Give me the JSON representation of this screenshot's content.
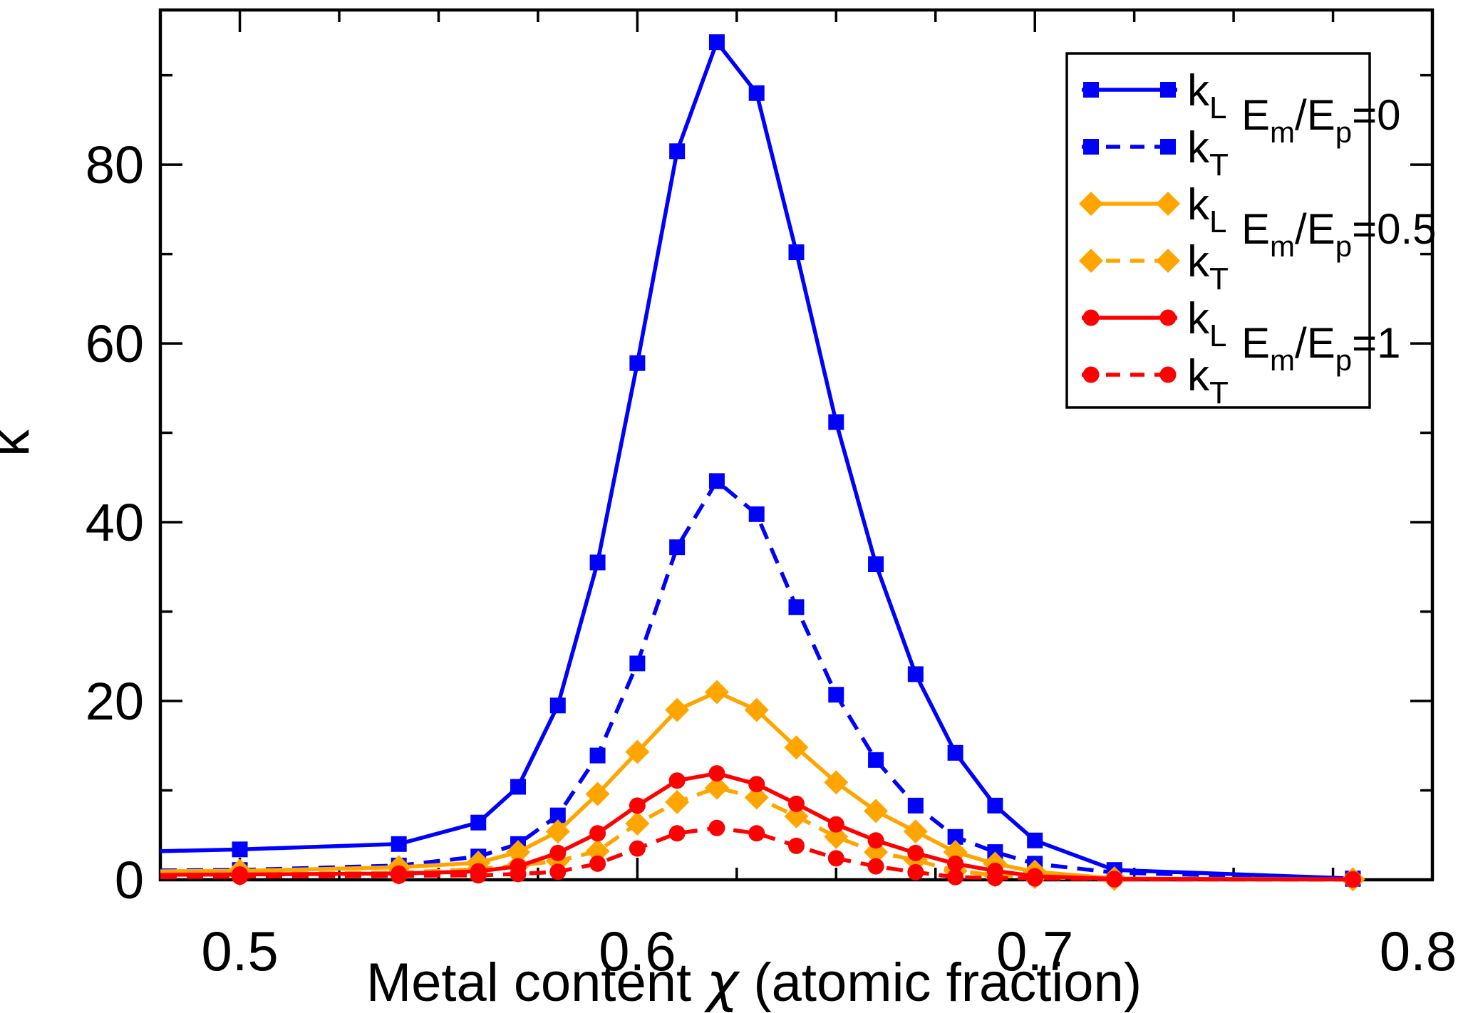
{
  "background": "#ffffff",
  "chart_data": {
    "type": "line",
    "title": "",
    "xlabel": "Metal content χ (atomic fraction)",
    "ylabel": "k",
    "xlim": [
      0.48,
      0.8
    ],
    "ylim": [
      0,
      97.3
    ],
    "grid": false,
    "frame": "full-box",
    "x_major_ticks": [
      0.5,
      0.6,
      0.7,
      0.8
    ],
    "x_tick_labels": [
      "0.5",
      "0.6",
      "0.7",
      "0.8"
    ],
    "x_minor_tick_step": 0.025,
    "y_major_ticks": [
      20,
      40,
      60,
      80
    ],
    "y_minor_ticks": [
      10,
      30,
      50,
      70,
      90
    ],
    "y_tick_labels": [
      "0",
      "20",
      "40",
      "60",
      "80"
    ],
    "y_tick_values": [
      0,
      20,
      40,
      60,
      80
    ],
    "axis_color": "#000000",
    "x": [
      0.48,
      0.5,
      0.54,
      0.56,
      0.57,
      0.58,
      0.59,
      0.6,
      0.61,
      0.62,
      0.63,
      0.64,
      0.65,
      0.66,
      0.67,
      0.68,
      0.69,
      0.7,
      0.72,
      0.78
    ],
    "first_point_at_frame_edge_no_marker": true,
    "series": [
      {
        "name": "k_L",
        "group": "E_m/E_p=0",
        "color": "#0000ff",
        "dashed": false,
        "marker": "square",
        "values": [
          3.2,
          3.4,
          4.0,
          6.4,
          10.4,
          19.5,
          35.5,
          57.8,
          81.5,
          93.7,
          88.0,
          70.2,
          51.2,
          35.3,
          23.0,
          14.2,
          8.3,
          4.4,
          1.1,
          0.15
        ]
      },
      {
        "name": "k_T",
        "group": "E_m/E_p=0",
        "color": "#0000ff",
        "dashed": true,
        "marker": "square",
        "values": [
          1.05,
          1.1,
          1.6,
          2.6,
          4.0,
          7.2,
          13.9,
          24.2,
          37.2,
          44.6,
          40.9,
          30.5,
          20.7,
          13.4,
          8.3,
          4.8,
          3.1,
          1.8,
          0.8,
          0.1
        ]
      },
      {
        "name": "k_L",
        "group": "E_m/E_p=0.5",
        "color": "#ffa500",
        "dashed": false,
        "marker": "diamond",
        "values": [
          0.95,
          1.0,
          1.4,
          1.9,
          3.1,
          5.4,
          9.6,
          14.3,
          19.0,
          21.0,
          19.0,
          14.8,
          10.9,
          7.7,
          5.4,
          3.1,
          1.8,
          0.9,
          0.15,
          0.05
        ]
      },
      {
        "name": "k_T",
        "group": "E_m/E_p=0.5",
        "color": "#ffa500",
        "dashed": true,
        "marker": "diamond",
        "values": [
          0.6,
          0.65,
          0.8,
          1.2,
          1.6,
          2.1,
          3.2,
          6.3,
          8.7,
          10.3,
          9.2,
          7.1,
          4.8,
          3.1,
          2.2,
          1.0,
          0.5,
          0.3,
          0.1,
          0.05
        ]
      },
      {
        "name": "k_L",
        "group": "E_m/E_p=1",
        "color": "#ff0000",
        "dashed": false,
        "marker": "circle",
        "values": [
          0.55,
          0.6,
          0.7,
          0.95,
          1.5,
          3.0,
          5.2,
          8.3,
          11.1,
          11.9,
          10.7,
          8.5,
          6.2,
          4.4,
          3.0,
          1.8,
          1.0,
          0.4,
          0.1,
          0.05
        ]
      },
      {
        "name": "k_T",
        "group": "E_m/E_p=1",
        "color": "#ff0000",
        "dashed": true,
        "marker": "circle",
        "values": [
          0.3,
          0.35,
          0.45,
          0.5,
          0.65,
          0.9,
          1.8,
          3.5,
          5.2,
          5.8,
          5.2,
          3.8,
          2.4,
          1.5,
          0.85,
          0.3,
          0.2,
          0.15,
          0.05,
          0.03
        ]
      }
    ],
    "legend": {
      "position": "top-right",
      "border_color": "#000000",
      "fill": "#ffffff",
      "entries": [
        {
          "label": "k_L",
          "series_index": 0
        },
        {
          "label": "k_T",
          "series_index": 1
        },
        {
          "label": "k_L",
          "series_index": 2
        },
        {
          "label": "k_T",
          "series_index": 3
        },
        {
          "label": "k_L",
          "series_index": 4
        },
        {
          "label": "k_T",
          "series_index": 5
        }
      ],
      "group_labels": [
        {
          "label": "E_m/E_p=0",
          "color": "#0000ff"
        },
        {
          "label": "E_m/E_p=0.5",
          "color": "#ffa500"
        },
        {
          "label": "E_m/E_p=1",
          "color": "#ff0000"
        }
      ]
    }
  }
}
